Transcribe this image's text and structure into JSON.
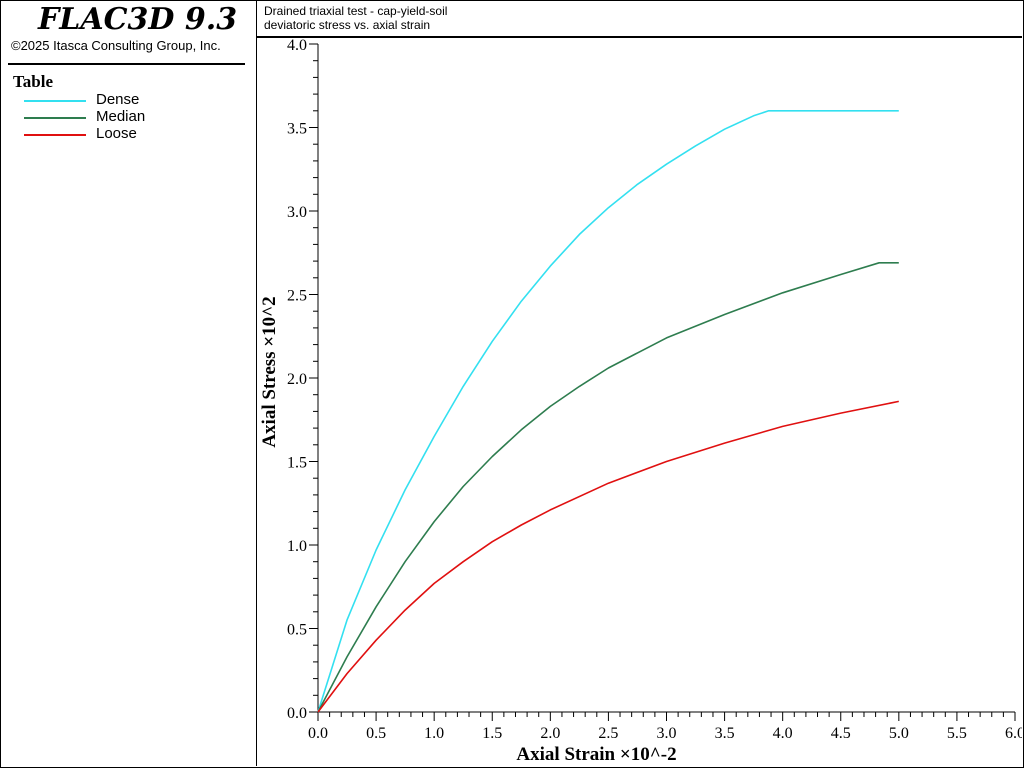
{
  "app": {
    "title": "FLAC3D 9.3",
    "copyright": "©2025 Itasca Consulting Group, Inc."
  },
  "legend": {
    "title": "Table",
    "items": [
      {
        "label": "Dense",
        "color": "#33e0f0"
      },
      {
        "label": "Median",
        "color": "#2e7d4f"
      },
      {
        "label": "Loose",
        "color": "#e01010"
      }
    ]
  },
  "header": {
    "line1": "Drained triaxial test - cap-yield-soil",
    "line2": "deviatoric stress vs. axial strain"
  },
  "chart_data": {
    "type": "line",
    "xlabel": "Axial Strain ×10^-2",
    "ylabel": "Axial Stress ×10^2",
    "xlim": [
      0,
      6
    ],
    "ylim": [
      0,
      4
    ],
    "xticks": [
      "0.0",
      "0.5",
      "1.0",
      "1.5",
      "2.0",
      "2.5",
      "3.0",
      "3.5",
      "4.0",
      "4.5",
      "5.0",
      "5.5",
      "6.0"
    ],
    "yticks": [
      "0.0",
      "0.5",
      "1.0",
      "1.5",
      "2.0",
      "2.5",
      "3.0",
      "3.5",
      "4.0"
    ],
    "grid": false,
    "legend_position": "left-panel",
    "series": [
      {
        "name": "Dense",
        "color": "#33e0f0",
        "x": [
          0,
          0.25,
          0.5,
          0.75,
          1.0,
          1.25,
          1.5,
          1.75,
          2.0,
          2.25,
          2.5,
          2.75,
          3.0,
          3.25,
          3.5,
          3.75,
          3.88,
          4.0,
          4.5,
          5.0
        ],
        "y": [
          0,
          0.55,
          0.97,
          1.33,
          1.65,
          1.95,
          2.22,
          2.46,
          2.67,
          2.86,
          3.02,
          3.16,
          3.28,
          3.39,
          3.49,
          3.57,
          3.6,
          3.6,
          3.6,
          3.6
        ]
      },
      {
        "name": "Median",
        "color": "#2e7d4f",
        "x": [
          0,
          0.25,
          0.5,
          0.75,
          1.0,
          1.25,
          1.5,
          1.75,
          2.0,
          2.25,
          2.5,
          2.75,
          3.0,
          3.5,
          4.0,
          4.5,
          4.83,
          5.0
        ],
        "y": [
          0,
          0.33,
          0.63,
          0.9,
          1.14,
          1.35,
          1.53,
          1.69,
          1.83,
          1.95,
          2.06,
          2.15,
          2.24,
          2.38,
          2.51,
          2.62,
          2.69,
          2.69
        ]
      },
      {
        "name": "Loose",
        "color": "#e01010",
        "x": [
          0,
          0.25,
          0.5,
          0.75,
          1.0,
          1.25,
          1.5,
          1.75,
          2.0,
          2.5,
          3.0,
          3.5,
          4.0,
          4.5,
          5.0
        ],
        "y": [
          0,
          0.23,
          0.43,
          0.61,
          0.77,
          0.9,
          1.02,
          1.12,
          1.21,
          1.37,
          1.5,
          1.61,
          1.71,
          1.79,
          1.86
        ]
      }
    ]
  }
}
